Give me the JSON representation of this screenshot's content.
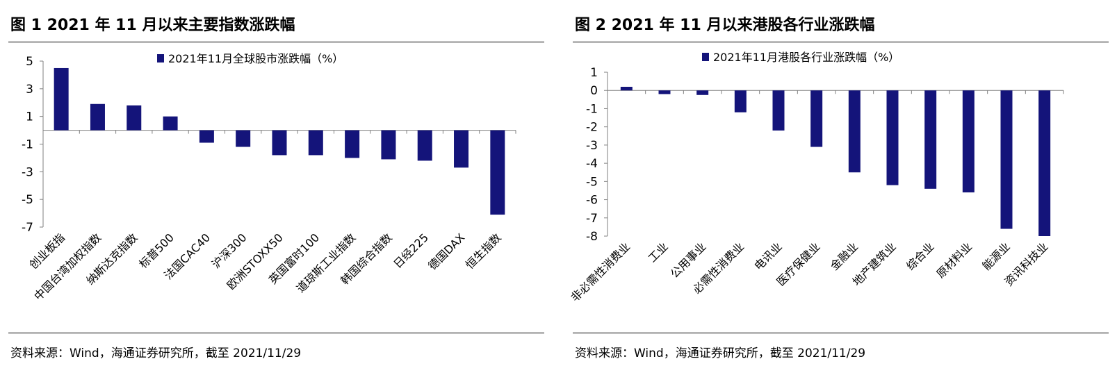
{
  "panels": [
    {
      "title": "图 1  2021 年 11 月以来主要指数涨跌幅",
      "source": "资料来源：Wind，海通证券研究所，截至 2021/11/29"
    },
    {
      "title": "图 2  2021 年 11 月以来港股各行业涨跌幅",
      "source": "资料来源：Wind，海通证券研究所，截至 2021/11/29"
    }
  ],
  "colors": {
    "bar": "#14147a",
    "axis": "#7f7f7f",
    "text": "#000000"
  },
  "chart_data": [
    {
      "type": "bar",
      "title": "",
      "xlabel": "",
      "ylabel": "",
      "ylim": [
        -7,
        5
      ],
      "yticks": [
        5,
        3,
        1,
        -1,
        -3,
        -5,
        -7
      ],
      "grid": false,
      "legend_position": "top-center",
      "categories": [
        "创业板指",
        "中国台湾加权指数",
        "纳斯达克指数",
        "标普500",
        "法国CAC40",
        "沪深300",
        "欧洲STOXX50",
        "英国富时100",
        "道琼斯工业指数",
        "韩国综合指数",
        "日经225",
        "德国DAX",
        "恒生指数"
      ],
      "series": [
        {
          "name": "2021年11月全球股市涨跌幅（%）",
          "values": [
            4.5,
            1.9,
            1.8,
            1.0,
            -0.9,
            -1.2,
            -1.8,
            -1.8,
            -2.0,
            -2.1,
            -2.2,
            -2.7,
            -6.1
          ]
        }
      ]
    },
    {
      "type": "bar",
      "title": "",
      "xlabel": "",
      "ylabel": "",
      "ylim": [
        -8,
        1
      ],
      "yticks": [
        1,
        0,
        -1,
        -2,
        -3,
        -4,
        -5,
        -6,
        -7,
        -8
      ],
      "grid": false,
      "legend_position": "top-center",
      "categories": [
        "非必需性消费业",
        "工业",
        "公用事业",
        "必需性消费业",
        "电讯业",
        "医疗保健业",
        "金融业",
        "地产建筑业",
        "综合业",
        "原材料业",
        "能源业",
        "资讯科技业"
      ],
      "series": [
        {
          "name": "2021年11月港股各行业涨跌幅（%）",
          "values": [
            0.2,
            -0.2,
            -0.25,
            -1.2,
            -2.2,
            -3.1,
            -4.5,
            -5.2,
            -5.4,
            -5.6,
            -7.6,
            -8.0
          ]
        }
      ]
    }
  ]
}
